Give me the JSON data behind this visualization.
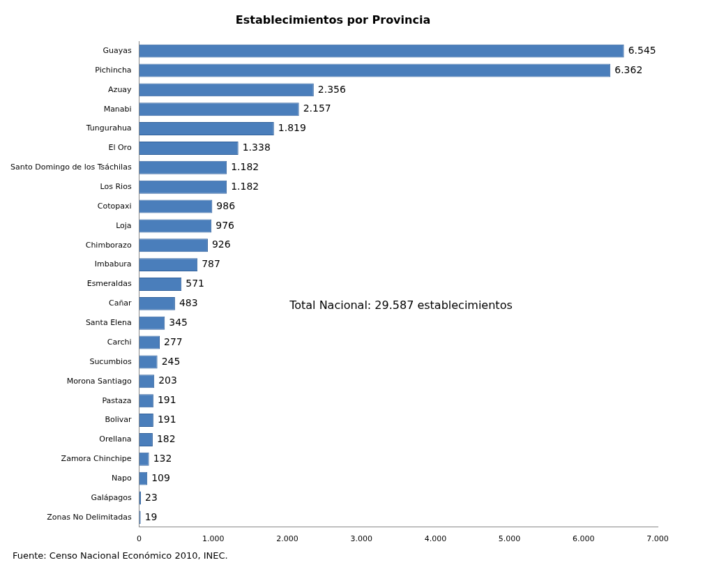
{
  "chart_data": {
    "type": "bar",
    "orientation": "horizontal",
    "title": "Establecimientos por Provincia",
    "categories": [
      "Guayas",
      "Pichincha",
      "Azuay",
      "Manabi",
      "Tungurahua",
      "El Oro",
      "Santo Domingo de los Tsáchilas",
      "Los Rios",
      "Cotopaxi",
      "Loja",
      "Chimborazo",
      "Imbabura",
      "Esmeraldas",
      "Cañar",
      "Santa Elena",
      "Carchi",
      "Sucumbios",
      "Morona Santiago",
      "Pastaza",
      "Bolivar",
      "Orellana",
      "Zamora Chinchipe",
      "Napo",
      "Galápagos",
      "Zonas No Delimitadas"
    ],
    "values": [
      6545,
      6362,
      2356,
      2157,
      1819,
      1338,
      1182,
      1182,
      986,
      976,
      926,
      787,
      571,
      483,
      345,
      277,
      245,
      203,
      191,
      191,
      182,
      132,
      109,
      23,
      19
    ],
    "value_labels": [
      "6.545",
      "6.362",
      "2.356",
      "2.157",
      "1.819",
      "1.338",
      "1.182",
      "1.182",
      "986",
      "976",
      "926",
      "787",
      "571",
      "483",
      "345",
      "277",
      "245",
      "203",
      "191",
      "191",
      "182",
      "132",
      "109",
      "23",
      "19"
    ],
    "color": "#4a7ebb",
    "xlim": [
      0,
      7000
    ],
    "xticks": [
      0,
      {
        "value": 1000,
        "label": "1.000"
      },
      {
        "value": 2000,
        "label": "2.000"
      },
      {
        "value": 3000,
        "label": "3.000"
      },
      {
        "value": 4000,
        "label": "4.000"
      },
      {
        "value": 5000,
        "label": "5.000"
      },
      {
        "value": 6000,
        "label": "6.000"
      },
      {
        "value": 7000,
        "label": "7.000"
      }
    ],
    "grid": false,
    "legend": false,
    "annotations": [
      "Total Nacional: 29.587 establecimientos",
      "Fuente: Censo Nacional Económico 2010, INEC."
    ]
  }
}
